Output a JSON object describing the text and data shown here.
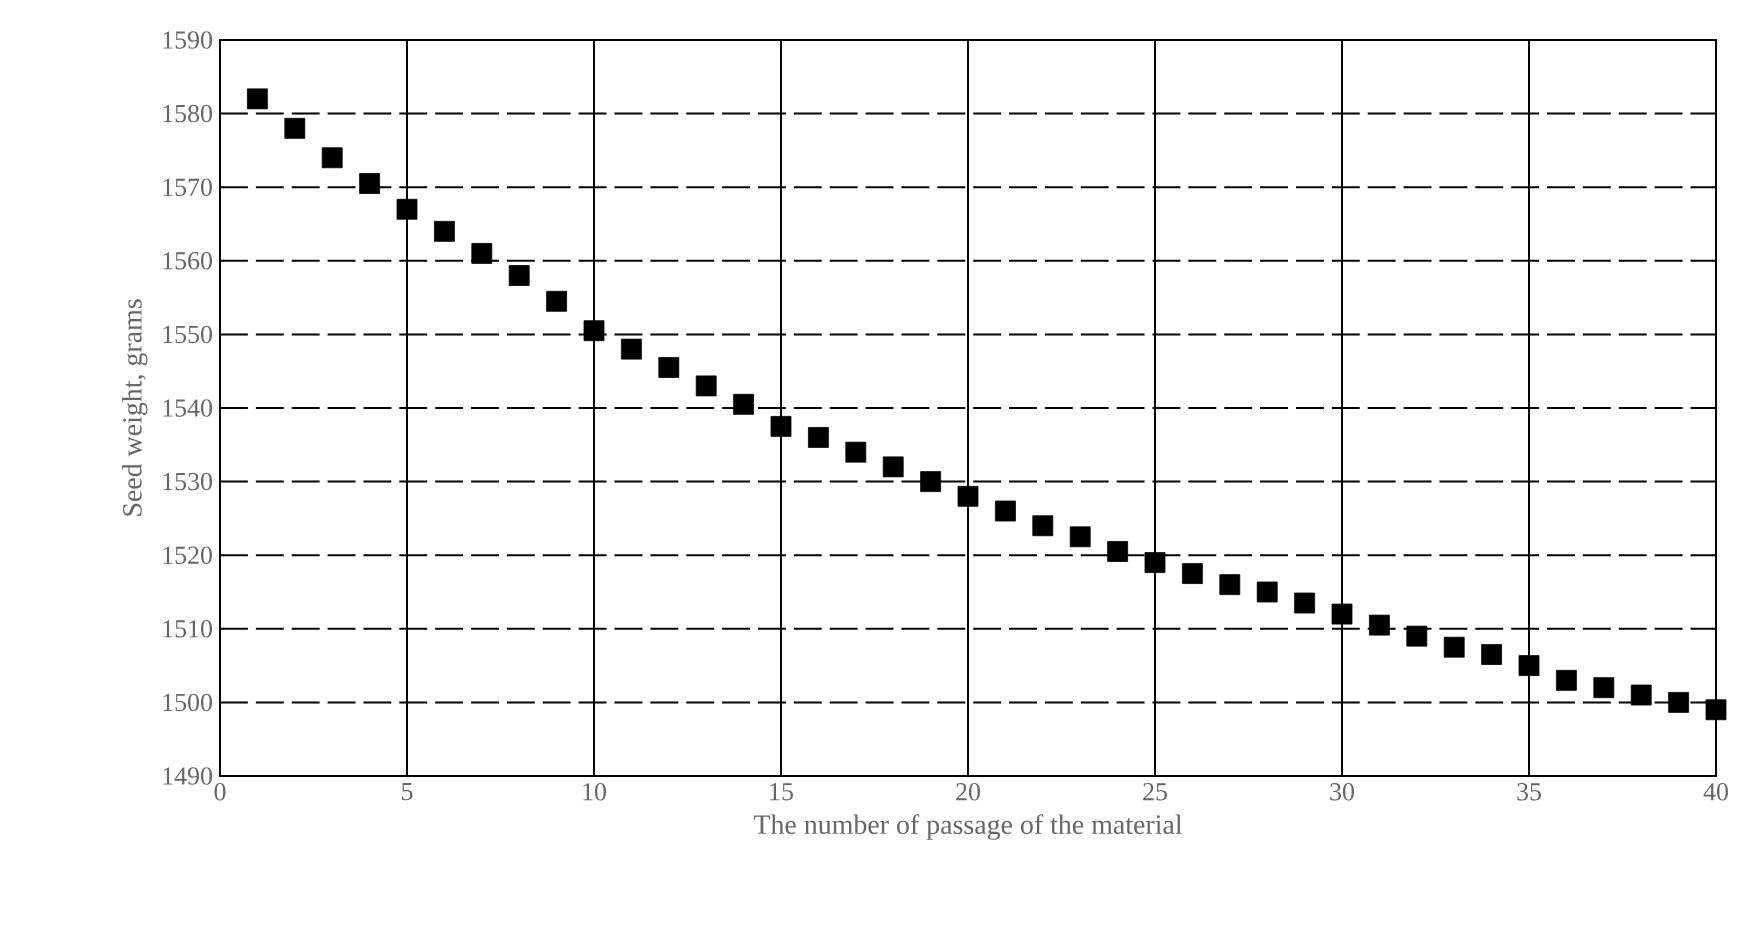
{
  "chart_data": {
    "type": "scatter",
    "xlabel": "The number of passage of the material",
    "ylabel": "Seed weight, grams",
    "x": [
      1,
      2,
      3,
      4,
      5,
      6,
      7,
      8,
      9,
      10,
      11,
      12,
      13,
      14,
      15,
      16,
      17,
      18,
      19,
      20,
      21,
      22,
      23,
      24,
      25,
      26,
      27,
      28,
      29,
      30,
      31,
      32,
      33,
      34,
      35,
      36,
      37,
      38,
      39,
      40
    ],
    "values": [
      1582,
      1578,
      1574,
      1570.5,
      1567,
      1564,
      1561,
      1558,
      1554.5,
      1550.5,
      1548,
      1545.5,
      1543,
      1540.5,
      1537.5,
      1536,
      1534,
      1532,
      1530,
      1528,
      1526,
      1524,
      1522.5,
      1520.5,
      1519,
      1517.5,
      1516,
      1515,
      1513.5,
      1512,
      1510.5,
      1509,
      1507.5,
      1506.5,
      1505,
      1503,
      1502,
      1501,
      1500,
      1499
    ],
    "color": "#000000",
    "marker": "square",
    "grid": true,
    "xlim": [
      0,
      40
    ],
    "xticks": [
      0,
      5,
      10,
      15,
      20,
      25,
      30,
      35,
      40
    ],
    "ylim": [
      1490,
      1590
    ],
    "yticks": [
      1490,
      1500,
      1510,
      1520,
      1530,
      1540,
      1550,
      1560,
      1570,
      1580,
      1590
    ]
  }
}
